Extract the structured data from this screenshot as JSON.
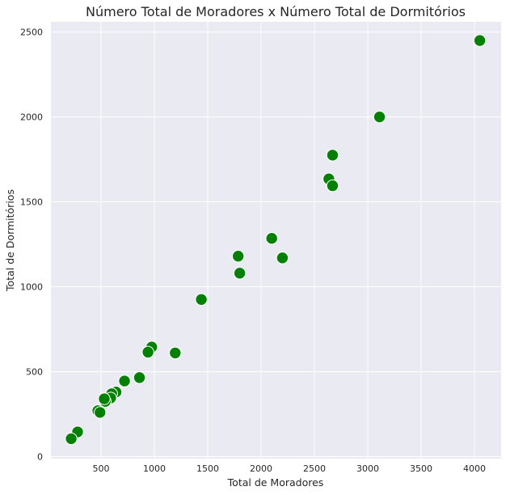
{
  "chart_data": {
    "type": "scatter",
    "title": "Número Total de Moradores x Número Total de Dormitórios",
    "xlabel": "Total de Moradores",
    "ylabel": "Total de Dormitórios",
    "xlim": [
      30,
      4250
    ],
    "ylim": [
      -12,
      2560
    ],
    "xticks": [
      500,
      1000,
      1500,
      2000,
      2500,
      3000,
      3500,
      4000
    ],
    "yticks": [
      0,
      500,
      1000,
      1500,
      2000,
      2500
    ],
    "grid": true,
    "marker_color": "#008000",
    "background_color": "#EAEAF2",
    "points": [
      {
        "x": 4050,
        "y": 2450
      },
      {
        "x": 3110,
        "y": 2000
      },
      {
        "x": 2670,
        "y": 1775
      },
      {
        "x": 2635,
        "y": 1635
      },
      {
        "x": 2670,
        "y": 1595
      },
      {
        "x": 2100,
        "y": 1285
      },
      {
        "x": 1785,
        "y": 1180
      },
      {
        "x": 2200,
        "y": 1170
      },
      {
        "x": 1800,
        "y": 1080
      },
      {
        "x": 1440,
        "y": 925
      },
      {
        "x": 975,
        "y": 645
      },
      {
        "x": 940,
        "y": 615
      },
      {
        "x": 1195,
        "y": 610
      },
      {
        "x": 860,
        "y": 465
      },
      {
        "x": 720,
        "y": 445
      },
      {
        "x": 640,
        "y": 380
      },
      {
        "x": 600,
        "y": 370
      },
      {
        "x": 590,
        "y": 345
      },
      {
        "x": 540,
        "y": 325
      },
      {
        "x": 530,
        "y": 340
      },
      {
        "x": 470,
        "y": 270
      },
      {
        "x": 490,
        "y": 260
      },
      {
        "x": 280,
        "y": 145
      },
      {
        "x": 220,
        "y": 105
      }
    ]
  }
}
